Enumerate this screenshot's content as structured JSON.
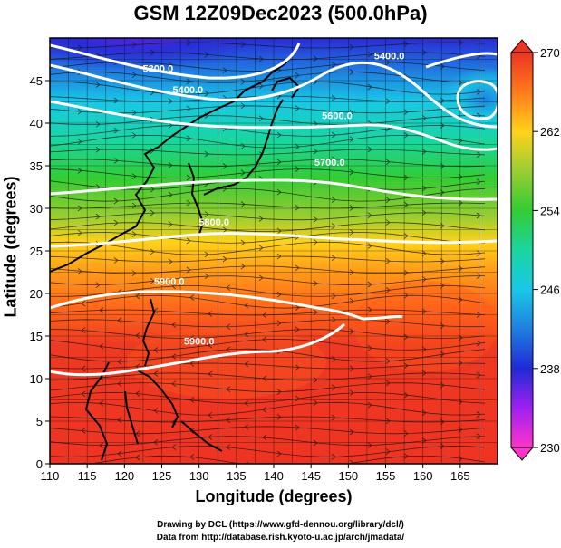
{
  "title": "GSM 12Z09Dec2023 (500.0hPa)",
  "xlabel": "Longitude (degrees)",
  "ylabel": "Latitude  (degrees)",
  "credit_line1": "Drawing by DCL (https://www.gfd-dennou.org/library/dcl/)",
  "credit_line2": "Data from http://database.rish.kyoto-u.ac.jp/arch/jmadata/",
  "map": {
    "lon_range": [
      110,
      170
    ],
    "lat_range": [
      0,
      50
    ],
    "lon_ticks": [
      "110",
      "115",
      "120",
      "125",
      "130",
      "135",
      "140",
      "145",
      "150",
      "155",
      "160",
      "165"
    ],
    "lat_ticks": [
      "0",
      "5",
      "10",
      "15",
      "20",
      "25",
      "30",
      "35",
      "40",
      "45"
    ],
    "contour_labels": [
      {
        "text": "5300.0",
        "lon": 124.5,
        "lat": 46
      },
      {
        "text": "5400.0",
        "lon": 128.5,
        "lat": 43.5
      },
      {
        "text": "5400.0",
        "lon": 155.5,
        "lat": 47.5
      },
      {
        "text": "5600.0",
        "lon": 148.5,
        "lat": 40.5
      },
      {
        "text": "5700.0",
        "lon": 147.5,
        "lat": 35
      },
      {
        "text": "5800.0",
        "lon": 132,
        "lat": 28
      },
      {
        "text": "5900.0",
        "lon": 126,
        "lat": 21
      },
      {
        "text": "5900.0",
        "lon": 130,
        "lat": 14
      }
    ],
    "colorbar": {
      "range": [
        230,
        270
      ],
      "tick_labels": [
        "270",
        "262",
        "254",
        "246",
        "238",
        "230"
      ],
      "stops": [
        {
          "v": 230,
          "color": "#ff33cc"
        },
        {
          "v": 234,
          "color": "#a020f0"
        },
        {
          "v": 238,
          "color": "#1f2ad6"
        },
        {
          "v": 242,
          "color": "#1f7fe0"
        },
        {
          "v": 246,
          "color": "#19c8e6"
        },
        {
          "v": 250,
          "color": "#19d6a0"
        },
        {
          "v": 254,
          "color": "#33cc33"
        },
        {
          "v": 258,
          "color": "#9acd32"
        },
        {
          "v": 262,
          "color": "#ffd21a"
        },
        {
          "v": 266,
          "color": "#ff7a1a"
        },
        {
          "v": 270,
          "color": "#ee3322"
        }
      ]
    }
  }
}
